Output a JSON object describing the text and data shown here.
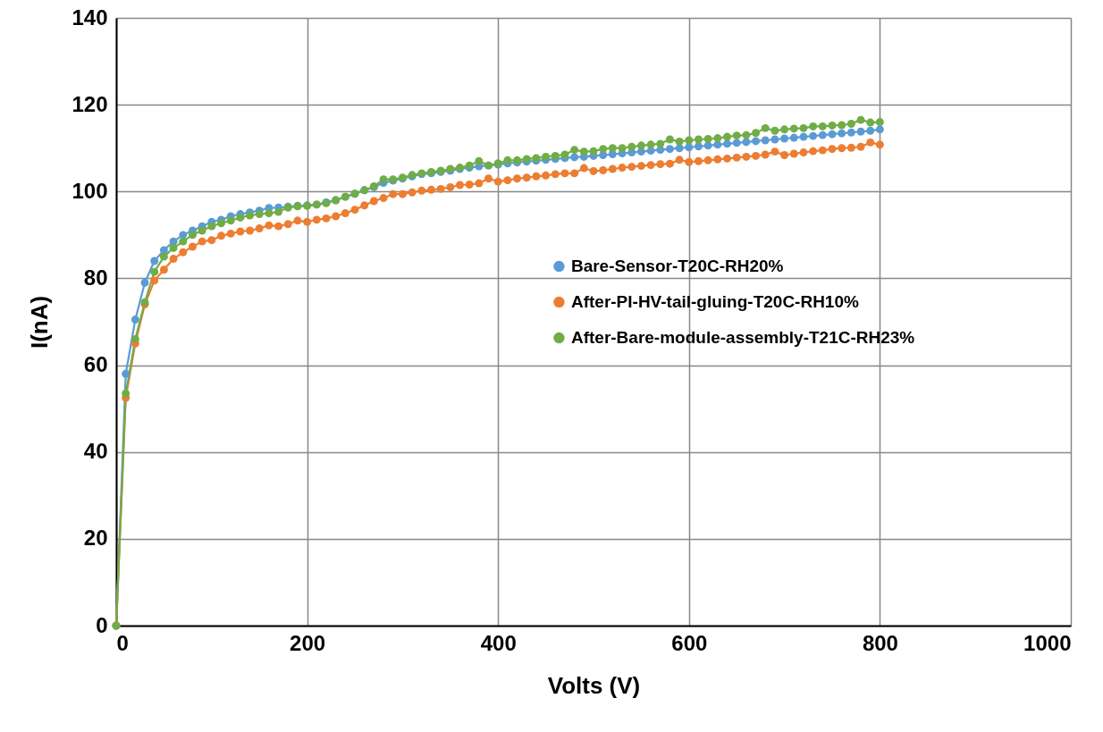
{
  "chart_data": {
    "type": "line",
    "xlabel": "Volts (V)",
    "ylabel": "I(nA)",
    "x": [
      0,
      10,
      20,
      30,
      40,
      50,
      60,
      70,
      80,
      90,
      100,
      110,
      120,
      130,
      140,
      150,
      160,
      170,
      180,
      190,
      200,
      210,
      220,
      230,
      240,
      250,
      260,
      270,
      280,
      290,
      300,
      310,
      320,
      330,
      340,
      350,
      360,
      370,
      380,
      390,
      400,
      410,
      420,
      430,
      440,
      450,
      460,
      470,
      480,
      490,
      500,
      510,
      520,
      530,
      540,
      550,
      560,
      570,
      580,
      590,
      600,
      610,
      620,
      630,
      640,
      650,
      660,
      670,
      680,
      690,
      700,
      710,
      720,
      730,
      740,
      750,
      760,
      770,
      780,
      790,
      800
    ],
    "xlim": [
      0,
      1000
    ],
    "xticks": [
      0,
      200,
      400,
      600,
      800,
      1000
    ],
    "ylim": [
      0,
      140
    ],
    "yticks": [
      0,
      20,
      40,
      60,
      80,
      100,
      120,
      140
    ],
    "grid": true,
    "legend": "right",
    "marker": "circle",
    "line_style": "solid",
    "series": [
      {
        "name": "Bare-Sensor-T20C-RH20%",
        "color": "#5b9bd5",
        "values": [
          0,
          58,
          70.5,
          79,
          84,
          86.5,
          88.5,
          90,
          91,
          92,
          93,
          93.5,
          94.3,
          94.8,
          95.2,
          95.6,
          96.2,
          96.3,
          96.5,
          96.7,
          96.8,
          97,
          97.5,
          98,
          98.8,
          99.5,
          100.3,
          101,
          102,
          102.5,
          103,
          103.5,
          104,
          104.2,
          104.5,
          104.8,
          105.2,
          105.5,
          105.8,
          106,
          106.2,
          106.5,
          106.7,
          106.9,
          107.1,
          107.3,
          107.5,
          107.7,
          107.9,
          108,
          108.2,
          108.4,
          108.6,
          108.8,
          109,
          109.2,
          109.4,
          109.6,
          109.8,
          110,
          110.2,
          110.4,
          110.6,
          110.8,
          111,
          111.2,
          111.4,
          111.6,
          111.8,
          112,
          112.2,
          112.4,
          112.6,
          112.8,
          113,
          113.2,
          113.4,
          113.6,
          113.8,
          114,
          114.3
        ]
      },
      {
        "name": "After-PI-HV-tail-gluing-T20C-RH10%",
        "color": "#ed7d31",
        "values": [
          0,
          52.5,
          65,
          74,
          79.5,
          82,
          84.5,
          86,
          87.3,
          88.5,
          88.8,
          89.8,
          90.3,
          90.8,
          91,
          91.5,
          92.2,
          92,
          92.5,
          93.3,
          93,
          93.5,
          93.8,
          94.3,
          95,
          95.8,
          96.8,
          97.8,
          98.5,
          99.4,
          99.4,
          99.8,
          100.2,
          100.4,
          100.6,
          101,
          101.5,
          101.6,
          101.9,
          103,
          102.3,
          102.6,
          103,
          103.2,
          103.5,
          103.7,
          104,
          104.2,
          104.2,
          105.4,
          104.7,
          104.9,
          105.2,
          105.5,
          105.7,
          105.9,
          106.1,
          106.3,
          106.4,
          107.3,
          106.8,
          107,
          107.2,
          107.4,
          107.6,
          107.8,
          108,
          108.2,
          108.5,
          109.2,
          108.4,
          108.7,
          109,
          109.3,
          109.5,
          109.8,
          110,
          110.1,
          110.3,
          111.3,
          110.8
        ]
      },
      {
        "name": "After-Bare-module-assembly-T21C-RH23%",
        "color": "#70ad47",
        "values": [
          0,
          53.5,
          66,
          74.5,
          81.5,
          85,
          87,
          88.5,
          90,
          91,
          92,
          92.7,
          93.3,
          94,
          94.5,
          94.8,
          95,
          95.3,
          96.3,
          96.6,
          96.7,
          97,
          97.3,
          98,
          98.8,
          99.5,
          100.3,
          101.2,
          102.8,
          102.8,
          103.2,
          103.8,
          104.2,
          104.5,
          104.8,
          105.2,
          105.5,
          106,
          107,
          106,
          106.5,
          107.2,
          107.2,
          107.5,
          107.7,
          108,
          108.2,
          108.5,
          109.6,
          109.2,
          109.3,
          109.8,
          110,
          110,
          110.3,
          110.6,
          110.8,
          111,
          112,
          111.5,
          111.8,
          112,
          112.1,
          112.3,
          112.6,
          112.9,
          113,
          113.5,
          114.6,
          114,
          114.3,
          114.5,
          114.6,
          115,
          115,
          115.2,
          115.3,
          115.6,
          116.5,
          115.9,
          116
        ]
      }
    ]
  }
}
